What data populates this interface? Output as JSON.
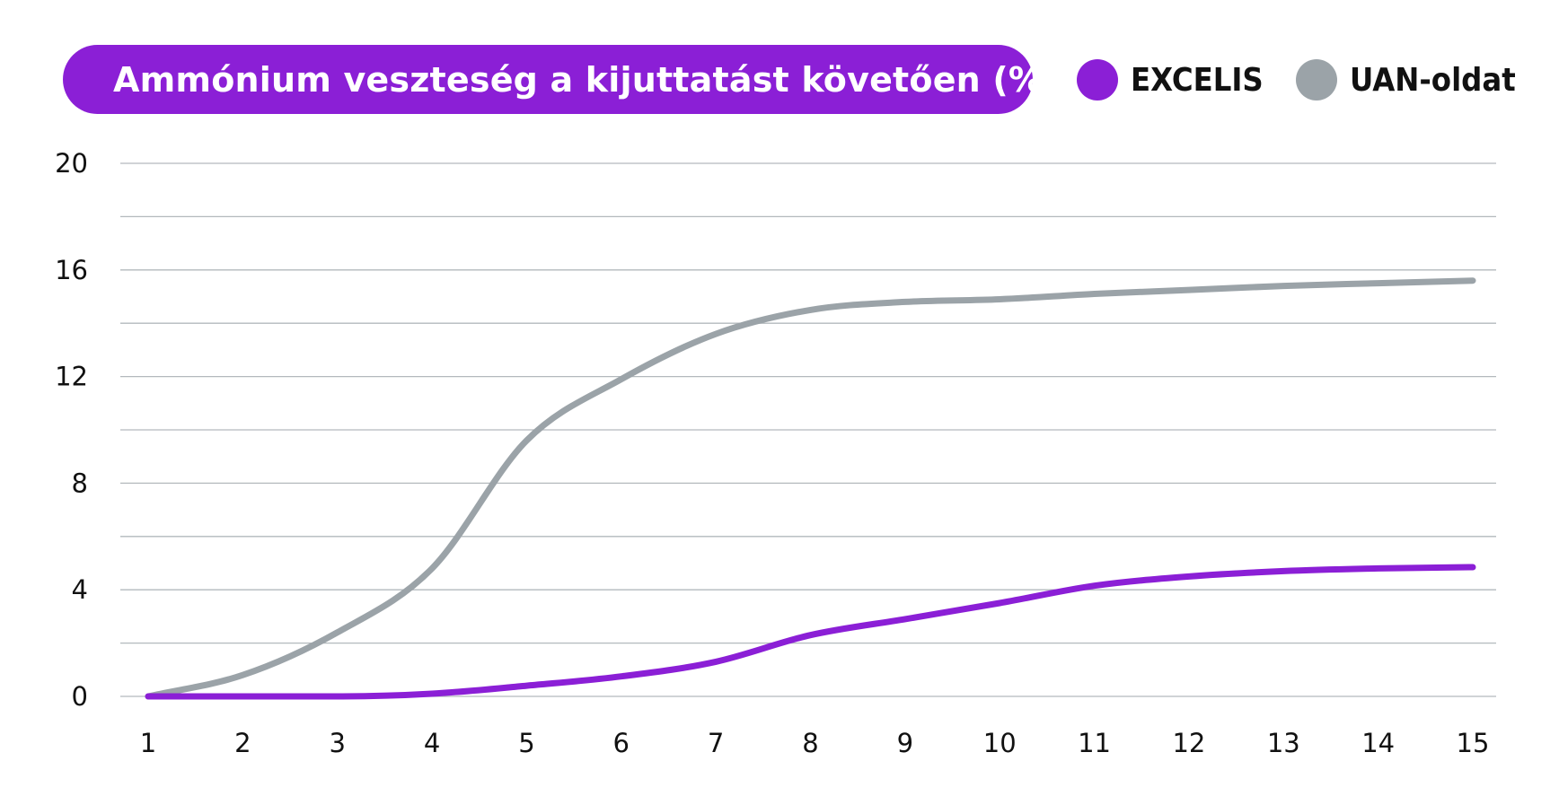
{
  "chart_data": {
    "type": "line",
    "title": "Ammónium veszteség a kijuttatást követően (%)",
    "xlabel": "",
    "ylabel": "",
    "x": [
      1,
      2,
      3,
      4,
      5,
      6,
      7,
      8,
      9,
      10,
      11,
      12,
      13,
      14,
      15
    ],
    "x_tick_labels": [
      "1",
      "2",
      "3",
      "4",
      "5",
      "6",
      "7",
      "8",
      "9",
      "10",
      "11",
      "12",
      "13",
      "14",
      "15"
    ],
    "y_tick_labels": [
      "0",
      "4",
      "8",
      "12",
      "16",
      "20"
    ],
    "ylim": [
      0,
      20
    ],
    "grid": true,
    "legend_position": "top-right",
    "series": [
      {
        "name": "EXCELIS",
        "color": "#8b1fd6",
        "values": [
          0,
          0,
          0,
          0.1,
          0.4,
          0.75,
          1.3,
          2.3,
          2.9,
          3.5,
          4.15,
          4.5,
          4.7,
          4.8,
          4.85
        ]
      },
      {
        "name": "UAN-oldat",
        "color": "#9ba3a8",
        "values": [
          0,
          0.8,
          2.4,
          4.8,
          9.6,
          11.9,
          13.6,
          14.5,
          14.8,
          14.9,
          15.1,
          15.25,
          15.4,
          15.5,
          15.6
        ]
      }
    ]
  }
}
